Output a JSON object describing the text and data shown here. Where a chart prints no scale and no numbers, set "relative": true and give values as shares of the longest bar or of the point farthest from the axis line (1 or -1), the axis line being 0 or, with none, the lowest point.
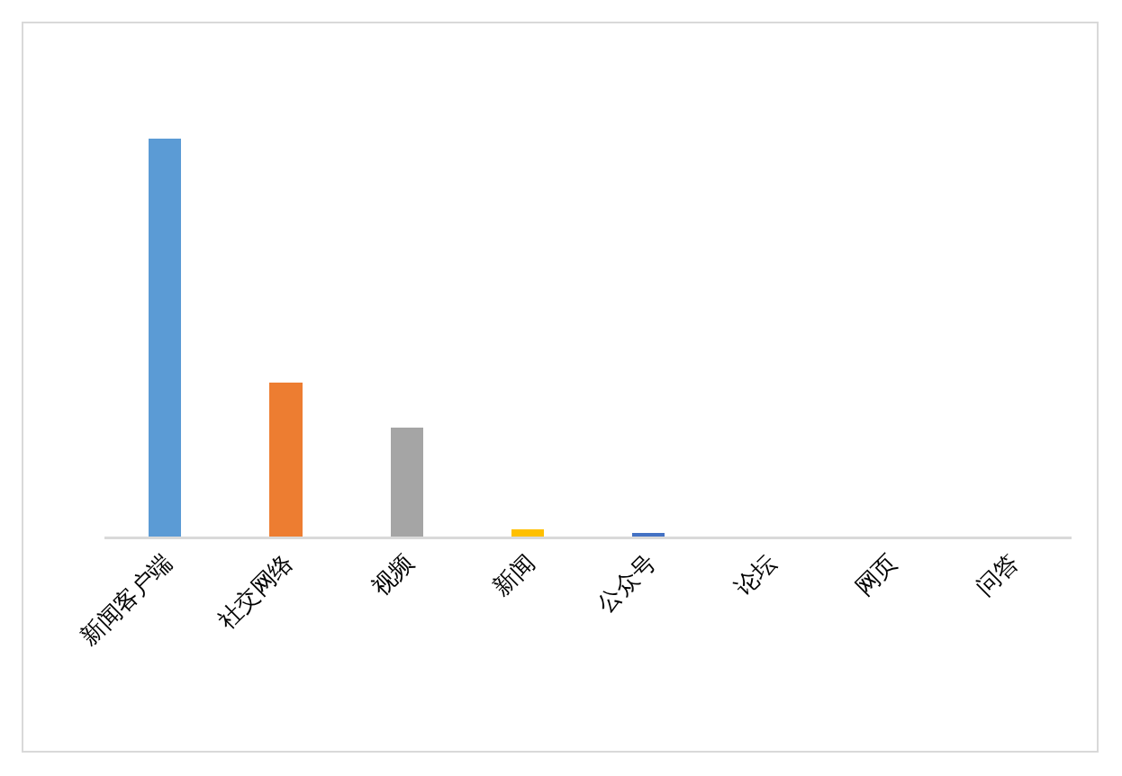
{
  "chart_data": {
    "type": "bar",
    "relative": true,
    "categories": [
      "新闻客户端",
      "社交网络",
      "视频",
      "新闻",
      "公众号",
      "论坛",
      "网页",
      "问答"
    ],
    "values": [
      1,
      0.386,
      0.273,
      0.018,
      0.01,
      0,
      0,
      0
    ],
    "colors": [
      "#5b9bd5",
      "#ed7d31",
      "#a5a5a5",
      "#ffc000",
      "#4472c4",
      "#70ad47",
      "#264478",
      "#9e480e"
    ],
    "legend": false
  }
}
